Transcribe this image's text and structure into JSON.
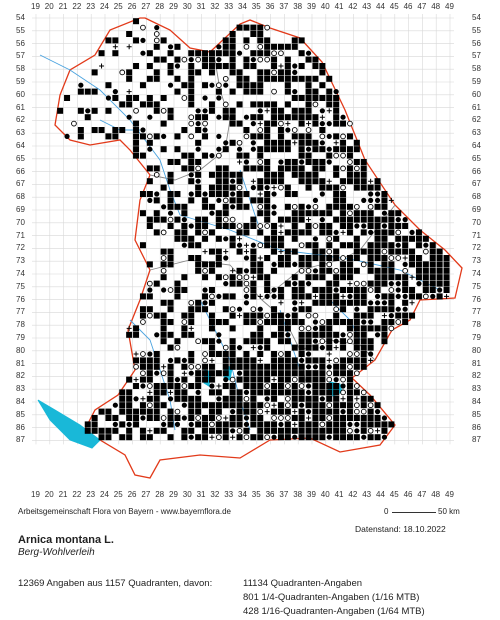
{
  "map": {
    "x_labels": [
      "19",
      "20",
      "21",
      "22",
      "23",
      "24",
      "25",
      "26",
      "27",
      "28",
      "29",
      "30",
      "31",
      "32",
      "33",
      "34",
      "35",
      "36",
      "37",
      "38",
      "39",
      "40",
      "41",
      "42",
      "43",
      "44",
      "45",
      "46",
      "47",
      "48",
      "49"
    ],
    "y_labels": [
      "54",
      "55",
      "56",
      "57",
      "58",
      "59",
      "60",
      "61",
      "62",
      "63",
      "64",
      "65",
      "66",
      "67",
      "68",
      "69",
      "70",
      "71",
      "72",
      "73",
      "74",
      "75",
      "76",
      "77",
      "78",
      "79",
      "80",
      "81",
      "82",
      "83",
      "84",
      "85",
      "86",
      "87"
    ],
    "colors": {
      "grid": "#d8d8d8",
      "state_border": "#e23a1a",
      "district_border": "#888888",
      "rivers": "#4aa3df",
      "lakes": "#19b8d8",
      "markers": "#000000"
    },
    "legend_symbols": [
      "filled-square",
      "filled-circle",
      "open-circle",
      "plus",
      "minus"
    ]
  },
  "footer": {
    "credit": "Arbeitsgemeinschaft Flora von Bayern - www.bayernflora.de",
    "scale_zero": "0",
    "scale_end": "50 km",
    "date_line": "Datenstand: 18.10.2022",
    "species": "Arnica montana L.",
    "common_name": "Berg-Wohlverleih",
    "stats_left": "12369 Angaben aus 1157 Quadranten, davon:",
    "stats_lines": [
      "11134 Quadranten-Angaben",
      "801 1/4-Quadranten-Angaben (1/16 MTB)",
      "428 1/16-Quadranten-Angaben (1/64 MTB)"
    ]
  }
}
